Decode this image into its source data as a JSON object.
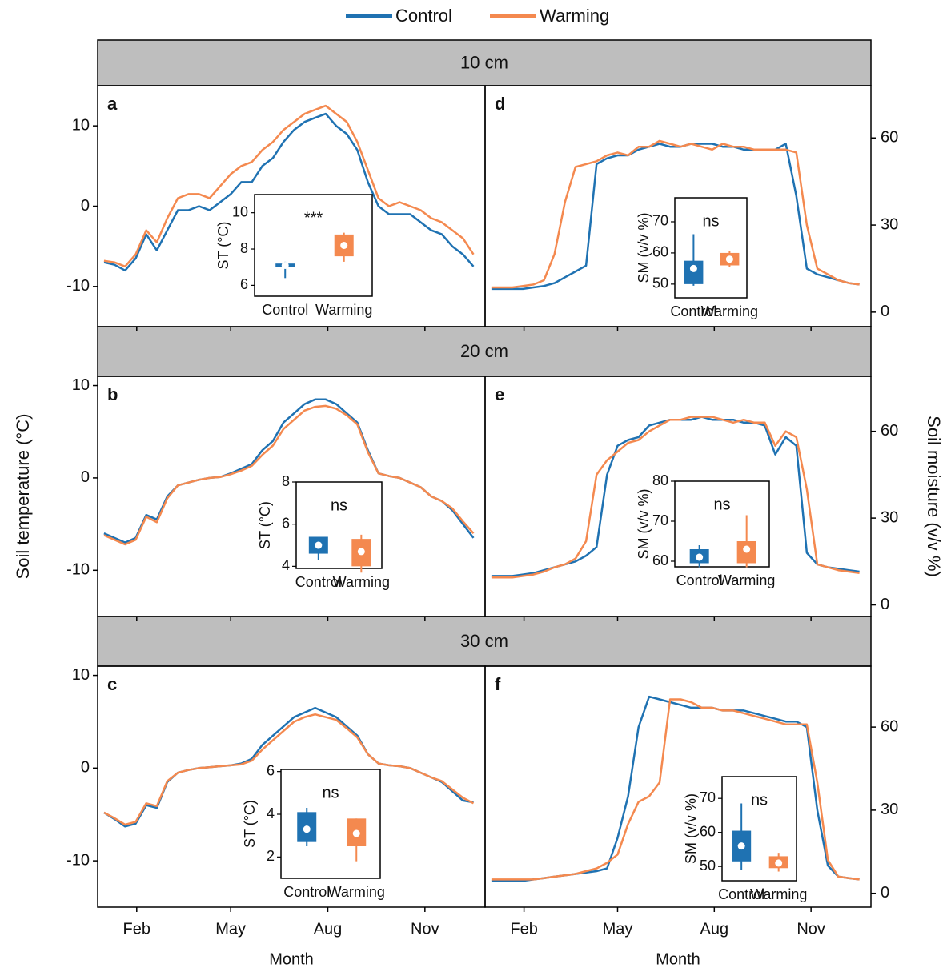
{
  "legend": [
    {
      "name": "Control",
      "color": "#1f72b2"
    },
    {
      "name": "Warming",
      "color": "#f4894f"
    }
  ],
  "strips": [
    "10 cm",
    "20 cm",
    "30 cm"
  ],
  "ylabel_left": "Soil temperature (°C)",
  "ylabel_right": "Soil moisture (v/v %)",
  "chart_data": [
    {
      "type": "line",
      "label": "a",
      "xlim": [
        -5,
        362
      ],
      "ylim": [
        -15,
        15
      ],
      "yticks": [
        -10,
        0,
        10
      ],
      "x": [
        1,
        11,
        21,
        31,
        41,
        51,
        61,
        71,
        81,
        91,
        101,
        111,
        121,
        131,
        141,
        151,
        161,
        171,
        181,
        191,
        201,
        211,
        221,
        231,
        241,
        251,
        261,
        271,
        281,
        291,
        301,
        311,
        321,
        331,
        341,
        351
      ],
      "series": [
        {
          "values": [
            -7,
            -7.3,
            -8,
            -6.5,
            -3.5,
            -5.5,
            -3,
            -0.5,
            -0.5,
            0,
            -0.5,
            0.5,
            1.5,
            3,
            3,
            5,
            6,
            8,
            9.5,
            10.5,
            11,
            11.5,
            10,
            9,
            7,
            3,
            0,
            -1,
            -1,
            -1,
            -2,
            -3,
            -3.5,
            -5,
            -6,
            -7.5
          ]
        },
        {
          "values": [
            -6.8,
            -7,
            -7.5,
            -6,
            -3,
            -4.5,
            -1.5,
            1,
            1.5,
            1.5,
            1,
            2.5,
            4,
            5,
            5.5,
            7,
            8,
            9.5,
            10.5,
            11.5,
            12,
            12.5,
            11.5,
            10.5,
            8,
            4.5,
            1,
            0,
            0.5,
            0,
            -0.5,
            -1.5,
            -2,
            -3,
            -4,
            -6
          ]
        }
      ],
      "inset": {
        "type": "box",
        "ylabel": "ST (°C)",
        "annotation": "***",
        "categories": [
          "Control",
          "Warming"
        ],
        "ylim": [
          5.4,
          11
        ],
        "yticks": [
          6,
          8,
          10
        ],
        "boxes": [
          {
            "whisker_low": 6.4,
            "q1": 7.0,
            "q3": 7.2,
            "whisker_high": 7.3,
            "mean": 7.1
          },
          {
            "whisker_low": 7.3,
            "q1": 7.6,
            "q3": 8.8,
            "whisker_high": 8.9,
            "mean": 8.2
          }
        ]
      }
    },
    {
      "type": "line",
      "label": "b",
      "xlim": [
        -5,
        362
      ],
      "ylim": [
        -15,
        11
      ],
      "yticks": [
        -10,
        0,
        10
      ],
      "x": [
        1,
        11,
        21,
        31,
        41,
        51,
        61,
        71,
        81,
        91,
        101,
        111,
        121,
        131,
        141,
        151,
        161,
        171,
        181,
        191,
        201,
        211,
        221,
        231,
        241,
        251,
        261,
        271,
        281,
        291,
        301,
        311,
        321,
        331,
        341,
        351
      ],
      "series": [
        {
          "values": [
            -6,
            -6.5,
            -7,
            -6.5,
            -4,
            -4.5,
            -2,
            -0.8,
            -0.5,
            -0.2,
            0,
            0.1,
            0.5,
            1,
            1.5,
            3,
            4,
            6,
            7,
            8,
            8.5,
            8.5,
            8,
            7,
            6,
            3,
            0.5,
            0.2,
            0,
            -0.5,
            -1,
            -2,
            -2.5,
            -3.5,
            -5,
            -6.5
          ]
        },
        {
          "values": [
            -6.2,
            -6.7,
            -7.2,
            -6.7,
            -4.2,
            -4.8,
            -2.2,
            -0.8,
            -0.5,
            -0.2,
            0,
            0.1,
            0.4,
            0.8,
            1.3,
            2.5,
            3.5,
            5.3,
            6.3,
            7.3,
            7.7,
            7.8,
            7.5,
            6.8,
            5.8,
            2.8,
            0.5,
            0.2,
            0,
            -0.5,
            -1,
            -2,
            -2.5,
            -3.3,
            -4.7,
            -6
          ]
        }
      ],
      "inset": {
        "type": "box",
        "ylabel": "ST (°C)",
        "annotation": "ns",
        "categories": [
          "Control",
          "Warming"
        ],
        "ylim": [
          3.9,
          8
        ],
        "yticks": [
          4,
          6,
          8
        ],
        "boxes": [
          {
            "whisker_low": 4.3,
            "q1": 4.6,
            "q3": 5.4,
            "whisker_high": 5.4,
            "mean": 5.0
          },
          {
            "whisker_low": 3.7,
            "q1": 4.0,
            "q3": 5.3,
            "whisker_high": 5.5,
            "mean": 4.7
          }
        ]
      }
    },
    {
      "type": "line",
      "label": "c",
      "xlim": [
        -5,
        362
      ],
      "ylim": [
        -15,
        11
      ],
      "yticks": [
        -10,
        0,
        10
      ],
      "xticks": [
        {
          "value": 32,
          "label": "Feb"
        },
        {
          "value": 121,
          "label": "May"
        },
        {
          "value": 213,
          "label": "Aug"
        },
        {
          "value": 305,
          "label": "Nov"
        }
      ],
      "xlabel": "Month",
      "x": [
        1,
        11,
        21,
        31,
        41,
        51,
        61,
        71,
        81,
        91,
        101,
        111,
        121,
        131,
        141,
        151,
        161,
        171,
        181,
        191,
        201,
        211,
        221,
        231,
        241,
        251,
        261,
        271,
        281,
        291,
        301,
        311,
        321,
        331,
        341,
        351
      ],
      "series": [
        {
          "values": [
            -4.8,
            -5.5,
            -6.3,
            -6,
            -4,
            -4.3,
            -1.5,
            -0.5,
            -0.2,
            0,
            0.1,
            0.2,
            0.3,
            0.5,
            1,
            2.5,
            3.5,
            4.5,
            5.5,
            6,
            6.5,
            6,
            5.5,
            4.5,
            3.5,
            1.5,
            0.5,
            0.3,
            0.2,
            0,
            -0.5,
            -1,
            -1.5,
            -2.5,
            -3.5,
            -3.7
          ]
        },
        {
          "values": [
            -4.8,
            -5.4,
            -6.1,
            -5.8,
            -3.8,
            -4.1,
            -1.4,
            -0.5,
            -0.2,
            0,
            0.1,
            0.2,
            0.3,
            0.4,
            0.8,
            2,
            3,
            4,
            5,
            5.5,
            5.8,
            5.5,
            5.2,
            4.3,
            3.3,
            1.5,
            0.5,
            0.3,
            0.2,
            0,
            -0.5,
            -1,
            -1.4,
            -2.3,
            -3.2,
            -3.8
          ]
        }
      ],
      "inset": {
        "type": "box",
        "ylabel": "ST (°C)",
        "annotation": "ns",
        "categories": [
          "Control",
          "Warming"
        ],
        "ylim": [
          1,
          6.1
        ],
        "yticks": [
          2,
          4,
          6
        ],
        "boxes": [
          {
            "whisker_low": 2.5,
            "q1": 2.7,
            "q3": 4.1,
            "whisker_high": 4.3,
            "mean": 3.3
          },
          {
            "whisker_low": 1.8,
            "q1": 2.5,
            "q3": 3.8,
            "whisker_high": 3.8,
            "mean": 3.1
          }
        ]
      }
    },
    {
      "type": "line",
      "label": "d",
      "xlim": [
        -5,
        362
      ],
      "ylim": [
        -5,
        78
      ],
      "yticks": [
        0,
        30,
        60
      ],
      "x": [
        1,
        11,
        21,
        31,
        41,
        51,
        61,
        71,
        81,
        91,
        101,
        111,
        121,
        131,
        141,
        151,
        161,
        171,
        181,
        191,
        201,
        211,
        221,
        231,
        241,
        251,
        261,
        271,
        281,
        291,
        301,
        311,
        321,
        331,
        341,
        351
      ],
      "series": [
        {
          "values": [
            8,
            8,
            8,
            8,
            8.5,
            9,
            10,
            12,
            14,
            16,
            51,
            53,
            54,
            54,
            56,
            57,
            58,
            57,
            57,
            58,
            58,
            58,
            57,
            57,
            56,
            56,
            56,
            56,
            58,
            40,
            15,
            13,
            12,
            11,
            10,
            9.5
          ]
        },
        {
          "values": [
            8.5,
            8.5,
            8.5,
            9,
            9.5,
            11,
            20,
            38,
            50,
            51,
            52,
            54,
            55,
            54,
            57,
            57,
            59,
            58,
            57,
            58,
            57,
            56,
            58,
            57,
            57,
            56,
            56,
            56,
            56,
            55,
            30,
            15,
            13,
            11,
            10,
            9.5
          ]
        }
      ],
      "inset": {
        "type": "box",
        "ylabel": "SM (v/v %)",
        "annotation": "ns",
        "categories": [
          "Control",
          "Warming"
        ],
        "ylim": [
          45.6,
          77.7
        ],
        "yticks": [
          50,
          60,
          70
        ],
        "boxes": [
          {
            "whisker_low": 49.5,
            "q1": 50,
            "q3": 57.5,
            "whisker_high": 66,
            "mean": 55
          },
          {
            "whisker_low": 55.5,
            "q1": 56,
            "q3": 60,
            "whisker_high": 60.5,
            "mean": 58
          }
        ]
      }
    },
    {
      "type": "line",
      "label": "e",
      "xlim": [
        -5,
        362
      ],
      "ylim": [
        -4,
        79
      ],
      "yticks": [
        0,
        30,
        60
      ],
      "x": [
        1,
        11,
        21,
        31,
        41,
        51,
        61,
        71,
        81,
        91,
        101,
        111,
        121,
        131,
        141,
        151,
        161,
        171,
        181,
        191,
        201,
        211,
        221,
        231,
        241,
        251,
        261,
        271,
        281,
        291,
        301,
        311,
        321,
        331,
        341,
        351
      ],
      "series": [
        {
          "values": [
            10,
            10,
            10,
            10.5,
            11,
            12,
            13,
            14,
            15,
            17,
            20,
            45,
            55,
            57,
            58,
            62,
            63,
            64,
            64,
            64,
            65,
            64,
            64,
            64,
            63,
            63,
            62,
            52,
            58,
            55,
            18,
            14,
            13,
            12.5,
            12,
            11.5
          ]
        },
        {
          "values": [
            9.5,
            9.5,
            9.5,
            10,
            10.5,
            11.5,
            13,
            14,
            16,
            22,
            45,
            50,
            53,
            56,
            57,
            60,
            62,
            64,
            64,
            65,
            65,
            65,
            64,
            63,
            64,
            63,
            63,
            55,
            60,
            58,
            40,
            14,
            13,
            12,
            11.5,
            11
          ]
        }
      ],
      "inset": {
        "type": "box",
        "ylabel": "SM (v/v %)",
        "annotation": "ns",
        "categories": [
          "Control",
          "Warming"
        ],
        "ylim": [
          58.6,
          80
        ],
        "yticks": [
          60,
          70,
          80
        ],
        "boxes": [
          {
            "whisker_low": 58.5,
            "q1": 59.5,
            "q3": 63,
            "whisker_high": 64,
            "mean": 61
          },
          {
            "whisker_low": 58.5,
            "q1": 59.5,
            "q3": 65,
            "whisker_high": 71.5,
            "mean": 63
          }
        ]
      }
    },
    {
      "type": "line",
      "label": "f",
      "xlim": [
        -5,
        362
      ],
      "ylim": [
        -5,
        82
      ],
      "yticks": [
        0,
        30,
        60
      ],
      "xticks": [
        {
          "value": 32,
          "label": "Feb"
        },
        {
          "value": 121,
          "label": "May"
        },
        {
          "value": 213,
          "label": "Aug"
        },
        {
          "value": 305,
          "label": "Nov"
        }
      ],
      "xlabel": "Month",
      "x": [
        1,
        11,
        21,
        31,
        41,
        51,
        61,
        71,
        81,
        91,
        101,
        111,
        121,
        131,
        141,
        151,
        161,
        171,
        181,
        191,
        201,
        211,
        221,
        231,
        241,
        251,
        261,
        271,
        281,
        291,
        301,
        311,
        321,
        331,
        341,
        351
      ],
      "series": [
        {
          "values": [
            4.5,
            4.5,
            4.5,
            4.5,
            5,
            5.5,
            6,
            6.5,
            7,
            7.5,
            8,
            9,
            20,
            35,
            60,
            71,
            70,
            69,
            68,
            67,
            67,
            67,
            66,
            66,
            66,
            65,
            64,
            63,
            62,
            62,
            60,
            30,
            10,
            6,
            5.5,
            5
          ]
        },
        {
          "values": [
            5,
            5,
            5,
            5,
            5,
            5.5,
            6,
            6.5,
            7,
            8,
            9,
            11,
            14,
            25,
            33,
            35,
            40,
            70,
            70,
            69,
            67,
            67,
            66,
            66,
            65,
            64,
            63,
            62,
            61,
            61,
            61,
            40,
            12,
            6,
            5.5,
            5
          ]
        }
      ],
      "inset": {
        "type": "box",
        "ylabel": "SM (v/v %)",
        "annotation": "ns",
        "categories": [
          "Control",
          "Warming"
        ],
        "ylim": [
          45.8,
          76.4
        ],
        "yticks": [
          50,
          60,
          70
        ],
        "boxes": [
          {
            "whisker_low": 49,
            "q1": 51.5,
            "q3": 60.5,
            "whisker_high": 68.5,
            "mean": 56
          },
          {
            "whisker_low": 48.5,
            "q1": 49.5,
            "q3": 53,
            "whisker_high": 54,
            "mean": 51
          }
        ]
      }
    }
  ]
}
